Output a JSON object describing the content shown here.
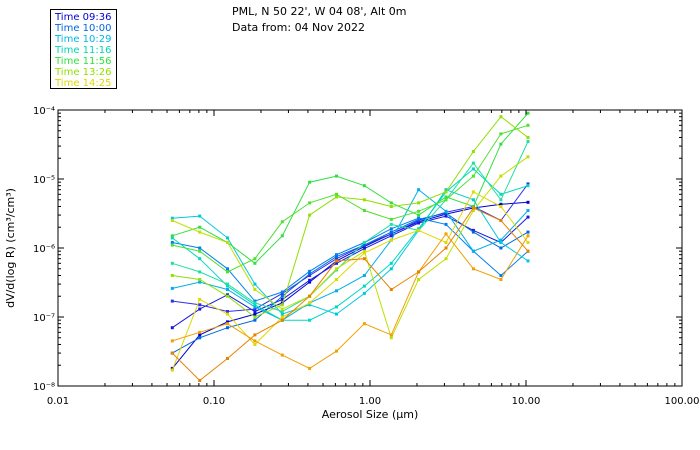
{
  "header": {
    "line1": "PML, N 50 22', W 04 08', Alt 0m",
    "line2": "Data from: 04 Nov 2022"
  },
  "chart_data": {
    "type": "line",
    "xscale": "log",
    "yscale": "log",
    "xlabel": "Aerosol Size (μm)",
    "ylabel": "dV/d(log R) (cm³/cm³)",
    "xlim": [
      0.01,
      100.0
    ],
    "ylim": [
      1e-08,
      0.0001
    ],
    "xticks": [
      "0.01",
      "0.10",
      "1.00",
      "10.00",
      "100.00"
    ],
    "yticks": [
      "10⁻⁸",
      "10⁻⁷",
      "10⁻⁶",
      "10⁻⁵",
      "10⁻⁴"
    ],
    "x": [
      0.054,
      0.081,
      0.122,
      0.183,
      0.274,
      0.41,
      0.61,
      0.92,
      1.37,
      2.05,
      3.07,
      4.6,
      6.9,
      10.3
    ],
    "series": [
      {
        "name": "Time 09:36",
        "color": "#0000d8",
        "values": [
          1.8e-08,
          5.5e-08,
          8.5e-08,
          1.1e-07,
          1.6e-07,
          3.2e-07,
          6.5e-07,
          1.05e-06,
          1.6e-06,
          2.4e-06,
          3.1e-06,
          3.8e-06,
          4.3e-06,
          4.6e-06
        ]
      },
      {
        "name": "Time 09:36",
        "color": "#1a1adf",
        "values": [
          7e-08,
          1.3e-07,
          2.1e-07,
          1.2e-07,
          1.8e-07,
          3.4e-07,
          6e-07,
          9.8e-07,
          1.5e-06,
          2.3e-06,
          2.9e-06,
          1.8e-06,
          1.2e-06,
          2.8e-06
        ]
      },
      {
        "name": "Time 09:36",
        "color": "#3030e8",
        "values": [
          1.7e-07,
          1.5e-07,
          1.2e-07,
          1.3e-07,
          2.2e-07,
          4e-07,
          7e-07,
          1.1e-06,
          1.6e-06,
          2.5e-06,
          3.3e-06,
          4e-06,
          2.5e-06,
          8.5e-06
        ]
      },
      {
        "name": "Time 10:00",
        "color": "#0068e0",
        "values": [
          3e-08,
          5e-08,
          7e-08,
          9e-08,
          2e-07,
          4.2e-07,
          7.5e-07,
          1.1e-06,
          1.7e-06,
          2.6e-06,
          3.2e-06,
          1.7e-06,
          1e-06,
          1.7e-06
        ]
      },
      {
        "name": "Time 10:00",
        "color": "#0080f0",
        "values": [
          1.2e-06,
          1e-06,
          5e-07,
          1.7e-07,
          2.3e-07,
          4.6e-07,
          8e-07,
          1.2e-06,
          1.9e-06,
          2.7e-06,
          2.2e-06,
          9e-07,
          4e-07,
          9e-07
        ]
      },
      {
        "name": "Time 10:29",
        "color": "#00b0e8",
        "values": [
          2.6e-07,
          3.2e-07,
          2.5e-07,
          1.4e-07,
          9e-08,
          1.6e-07,
          2.4e-07,
          4e-07,
          1.3e-06,
          7e-06,
          3.4e-06,
          9e-07,
          1.3e-06,
          3.5e-06
        ]
      },
      {
        "name": "Time 10:29",
        "color": "#00c8e0",
        "values": [
          2.7e-06,
          2.9e-06,
          1.4e-06,
          3e-07,
          1.1e-07,
          1.5e-07,
          1.1e-07,
          2.2e-07,
          5e-07,
          1.8e-06,
          7e-06,
          5e-06,
          1.2e-06,
          6.5e-07
        ]
      },
      {
        "name": "Time 11:16",
        "color": "#00d8c0",
        "values": [
          1.4e-06,
          7e-07,
          2.8e-07,
          1.5e-07,
          9e-08,
          9e-08,
          1.4e-07,
          2.8e-07,
          6e-07,
          1.9e-06,
          6.5e-06,
          1.4e-05,
          6e-06,
          8e-06
        ]
      },
      {
        "name": "Time 11:16",
        "color": "#20e0a0",
        "values": [
          6e-07,
          4.5e-07,
          3e-07,
          1.6e-07,
          1.2e-07,
          2e-07,
          4.8e-07,
          1.2e-06,
          2.2e-06,
          1.8e-06,
          5e-06,
          1.7e-05,
          5e-06,
          3.5e-05
        ]
      },
      {
        "name": "Time 11:56",
        "color": "#30e040",
        "values": [
          1.5e-06,
          2e-06,
          1.2e-06,
          6e-07,
          1.5e-06,
          9e-06,
          1.1e-05,
          8e-06,
          4.5e-06,
          3e-06,
          5.5e-06,
          4e-06,
          3.2e-05,
          9e-05
        ]
      },
      {
        "name": "Time 11:56",
        "color": "#50e030",
        "values": [
          1.1e-06,
          9e-07,
          4.5e-07,
          7e-07,
          2.4e-06,
          4.5e-06,
          6e-06,
          3.5e-06,
          2.6e-06,
          3.4e-06,
          5e-06,
          1.1e-05,
          4.5e-05,
          6e-05
        ]
      },
      {
        "name": "Time 13:26",
        "color": "#90e000",
        "values": [
          4e-07,
          3.5e-07,
          2e-07,
          1e-07,
          1.5e-07,
          3e-06,
          5.5e-06,
          5e-06,
          4e-06,
          4.5e-06,
          6.5e-06,
          2.5e-05,
          8e-05,
          4e-05
        ]
      },
      {
        "name": "Time 13:26",
        "color": "#c0e000",
        "values": [
          2.5e-06,
          1.7e-06,
          1.2e-06,
          2.5e-07,
          1.3e-07,
          2e-07,
          5e-07,
          9e-07,
          5e-08,
          3.5e-07,
          7e-07,
          3.5e-06,
          1.1e-05,
          2.1e-05
        ]
      },
      {
        "name": "Time 14:25",
        "color": "#e0d800",
        "values": [
          1.7e-08,
          1.8e-07,
          1.1e-07,
          4e-08,
          1e-07,
          1.6e-07,
          3.5e-07,
          8.5e-07,
          1.3e-06,
          1.8e-06,
          1.2e-06,
          6.5e-06,
          4e-06,
          1.2e-06
        ]
      },
      {
        "name": "Time 14:25",
        "color": "#f0a000",
        "values": [
          4.5e-08,
          6e-08,
          8e-08,
          4.5e-08,
          2.8e-08,
          1.8e-08,
          3.2e-08,
          8e-08,
          5.5e-08,
          4.5e-07,
          1.6e-06,
          5e-07,
          3.5e-07,
          1.5e-06
        ]
      },
      {
        "name": "Time 14:25",
        "color": "#e88000",
        "values": [
          3e-08,
          1.2e-08,
          2.5e-08,
          5.5e-08,
          9e-08,
          2e-07,
          6.5e-07,
          7e-07,
          2.5e-07,
          4.5e-07,
          1e-06,
          3.8e-06,
          2.5e-06,
          9e-07
        ]
      }
    ],
    "legend": [
      {
        "label": "Time 09:36",
        "color": "#0000d8"
      },
      {
        "label": "Time 10:00",
        "color": "#0068e0"
      },
      {
        "label": "Time 10:29",
        "color": "#00b8e8"
      },
      {
        "label": "Time 11:16",
        "color": "#00d8b0"
      },
      {
        "label": "Time 11:56",
        "color": "#30e040"
      },
      {
        "label": "Time 13:26",
        "color": "#90e000"
      },
      {
        "label": "Time 14:25",
        "color": "#e0d800"
      }
    ]
  }
}
